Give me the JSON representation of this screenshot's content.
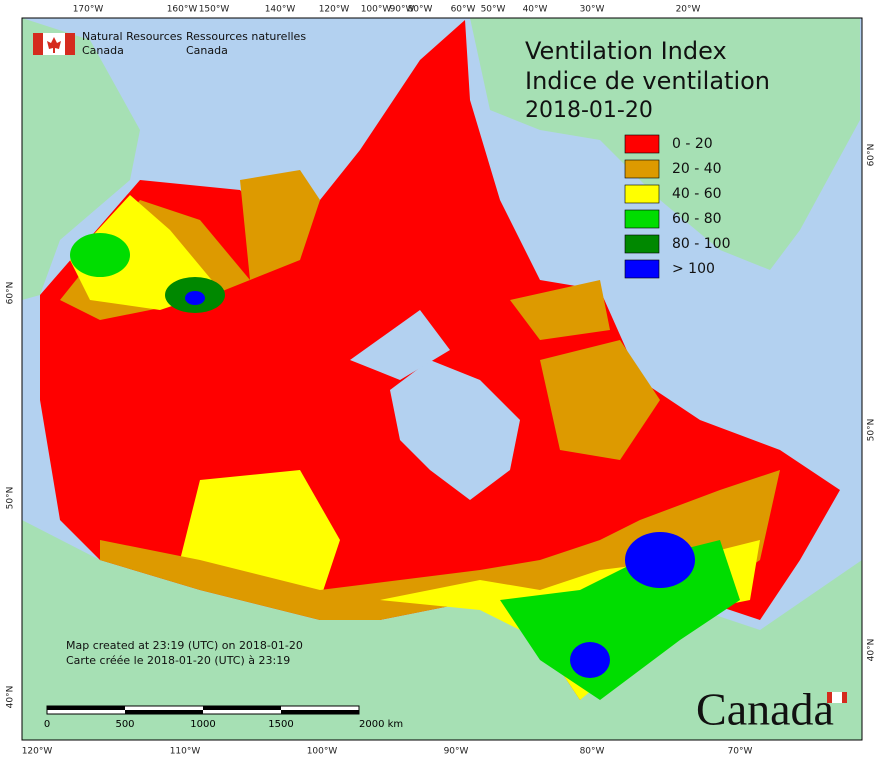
{
  "map": {
    "agency": {
      "en": [
        "Natural Resources",
        "Canada"
      ],
      "fr": [
        "Ressources naturelles",
        "Canada"
      ]
    },
    "title": [
      "Ventilation Index",
      "Indice de ventilation",
      "2018-01-20"
    ],
    "legend": [
      {
        "label": "0 - 20",
        "color": "#ff0000"
      },
      {
        "label": "20 - 40",
        "color": "#dd9a00"
      },
      {
        "label": "40 - 60",
        "color": "#ffff00"
      },
      {
        "label": "60 - 80",
        "color": "#00dd00"
      },
      {
        "label": "80 - 100",
        "color": "#008800"
      },
      {
        "label": "> 100",
        "color": "#0000ff"
      }
    ],
    "graticule": {
      "top": [
        "170°W",
        "160°W",
        "150°W",
        "140°W",
        "120°W",
        "100°W",
        "90°W",
        "80°W",
        "60°W",
        "50°W",
        "40°W",
        "30°W",
        "20°W"
      ],
      "bottom": [
        "120°W",
        "110°W",
        "100°W",
        "90°W",
        "80°W",
        "70°W"
      ],
      "left": [
        "60°N",
        "50°N",
        "40°N"
      ],
      "right": [
        "60°N",
        "50°N",
        "40°N"
      ]
    },
    "credits": [
      "Map created at 23:19 (UTC) on 2018-01-20",
      "Carte créée le 2018-01-20 (UTC) à 23:19"
    ],
    "scale_bar": [
      "0",
      "500",
      "1000",
      "1500",
      "2000 km"
    ],
    "wordmark": "Canada"
  }
}
